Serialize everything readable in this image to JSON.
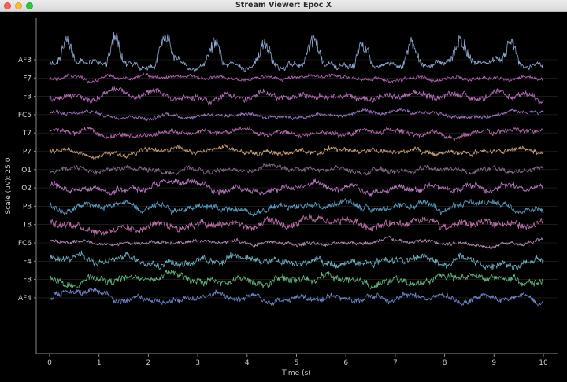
{
  "window": {
    "title": "Stream Viewer: Epoc X",
    "buttons": {
      "close": "close",
      "minimize": "minimize",
      "zoom": "zoom"
    }
  },
  "chart_data": {
    "type": "line",
    "title": "",
    "xlabel": "Time (s)",
    "ylabel": "Scale (uV): 25.0",
    "xlim": [
      0,
      10
    ],
    "xticks": [
      "0",
      "1",
      "2",
      "3",
      "4",
      "5",
      "6",
      "7",
      "8",
      "9",
      "10"
    ],
    "grid": false,
    "series": [
      {
        "name": "AF3",
        "color": "#8fa6cf",
        "amp": 13,
        "noise": 0.35,
        "bursts": 1
      },
      {
        "name": "F7",
        "color": "#b463b4",
        "amp": 3,
        "noise": 0.6
      },
      {
        "name": "F3",
        "color": "#b76fb9",
        "amp": 5,
        "noise": 0.6
      },
      {
        "name": "FC5",
        "color": "#a077c6",
        "amp": 3,
        "noise": 0.6
      },
      {
        "name": "T7",
        "color": "#b96bb0",
        "amp": 4,
        "noise": 0.6
      },
      {
        "name": "P7",
        "color": "#c9a071",
        "amp": 4,
        "noise": 0.6
      },
      {
        "name": "O1",
        "color": "#8a6a8f",
        "amp": 4,
        "noise": 0.6
      },
      {
        "name": "O2",
        "color": "#b978c1",
        "amp": 5,
        "noise": 0.6
      },
      {
        "name": "P8",
        "color": "#5c9bc2",
        "amp": 5,
        "noise": 0.6
      },
      {
        "name": "T8",
        "color": "#be70a7",
        "amp": 6,
        "noise": 0.6
      },
      {
        "name": "FC6",
        "color": "#b98ab6",
        "amp": 3,
        "noise": 0.6
      },
      {
        "name": "F4",
        "color": "#6ab1bf",
        "amp": 6,
        "noise": 0.55
      },
      {
        "name": "F8",
        "color": "#64b57f",
        "amp": 6,
        "noise": 0.55
      },
      {
        "name": "AF4",
        "color": "#6f86cf",
        "amp": 5,
        "noise": 0.55
      }
    ]
  },
  "colors": {
    "background": "#000000",
    "axis": "#8a8a8a",
    "label": "#cfcfcf"
  }
}
